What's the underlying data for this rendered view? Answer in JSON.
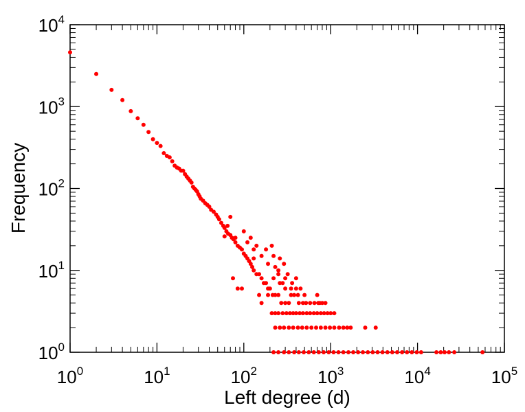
{
  "chart_data": {
    "type": "scatter",
    "title": "",
    "xlabel": "Left degree (d)",
    "ylabel": "Frequency",
    "xscale": "log",
    "yscale": "log",
    "xlim": [
      1,
      100000
    ],
    "ylim": [
      1,
      10000
    ],
    "grid": false,
    "legend": "none",
    "x_ticks": [
      {
        "base": "10",
        "exp": "0"
      },
      {
        "base": "10",
        "exp": "1"
      },
      {
        "base": "10",
        "exp": "2"
      },
      {
        "base": "10",
        "exp": "3"
      },
      {
        "base": "10",
        "exp": "4"
      },
      {
        "base": "10",
        "exp": "5"
      }
    ],
    "y_ticks": [
      {
        "base": "10",
        "exp": "0"
      },
      {
        "base": "10",
        "exp": "1"
      },
      {
        "base": "10",
        "exp": "2"
      },
      {
        "base": "10",
        "exp": "3"
      },
      {
        "base": "10",
        "exp": "4"
      }
    ],
    "marker_color": "#ff0000",
    "series": [
      {
        "points": [
          [
            1,
            4600
          ],
          [
            2,
            2500
          ],
          [
            3,
            1600
          ],
          [
            4,
            1200
          ],
          [
            5,
            880
          ],
          [
            6,
            720
          ],
          [
            7,
            600
          ],
          [
            8,
            490
          ],
          [
            9,
            400
          ],
          [
            10,
            360
          ],
          [
            11,
            330
          ],
          [
            12,
            270
          ],
          [
            13,
            250
          ],
          [
            14,
            240
          ],
          [
            15,
            215
          ],
          [
            16,
            190
          ],
          [
            17,
            180
          ],
          [
            18,
            175
          ],
          [
            19,
            165
          ],
          [
            20,
            165
          ],
          [
            21,
            150
          ],
          [
            22,
            140
          ],
          [
            23,
            132
          ],
          [
            24,
            125
          ],
          [
            25,
            118
          ],
          [
            26,
            105
          ],
          [
            27,
            100
          ],
          [
            28,
            96
          ],
          [
            29,
            92
          ],
          [
            30,
            85
          ],
          [
            31,
            80
          ],
          [
            32,
            75
          ],
          [
            34,
            71
          ],
          [
            36,
            66
          ],
          [
            38,
            63
          ],
          [
            40,
            60
          ],
          [
            42,
            55
          ],
          [
            45,
            52
          ],
          [
            48,
            48
          ],
          [
            50,
            45
          ],
          [
            52,
            42
          ],
          [
            55,
            38
          ],
          [
            58,
            35
          ],
          [
            60,
            33
          ],
          [
            63,
            30
          ],
          [
            66,
            28
          ],
          [
            70,
            27
          ],
          [
            73,
            25
          ],
          [
            76,
            24
          ],
          [
            80,
            22
          ],
          [
            85,
            20
          ],
          [
            90,
            19
          ],
          [
            95,
            18
          ],
          [
            100,
            16
          ],
          [
            105,
            15
          ],
          [
            110,
            14
          ],
          [
            115,
            13
          ],
          [
            120,
            12
          ],
          [
            125,
            11
          ],
          [
            130,
            10
          ],
          [
            140,
            9
          ],
          [
            150,
            9
          ],
          [
            160,
            8
          ],
          [
            170,
            7
          ],
          [
            180,
            7
          ],
          [
            190,
            6
          ],
          [
            200,
            6
          ],
          [
            215,
            5
          ],
          [
            230,
            5
          ],
          [
            250,
            5
          ],
          [
            270,
            4
          ],
          [
            300,
            4
          ],
          [
            330,
            4
          ],
          [
            75,
            8
          ],
          [
            95,
            6
          ],
          [
            130,
            18
          ],
          [
            160,
            15
          ],
          [
            210,
            20
          ],
          [
            80,
            25
          ],
          [
            110,
            22
          ],
          [
            190,
            12
          ],
          [
            230,
            11
          ],
          [
            250,
            9
          ],
          [
            280,
            7
          ],
          [
            350,
            6
          ],
          [
            400,
            6
          ],
          [
            420,
            5
          ],
          [
            450,
            6
          ],
          [
            500,
            5
          ],
          [
            85,
            6
          ],
          [
            150,
            5
          ],
          [
            190,
            5
          ],
          [
            250,
            10
          ],
          [
            300,
            8
          ],
          [
            160,
            4
          ],
          [
            60,
            26
          ],
          [
            65,
            35
          ],
          [
            70,
            45
          ],
          [
            100,
            30
          ],
          [
            120,
            25
          ],
          [
            140,
            20
          ],
          [
            180,
            18
          ],
          [
            220,
            15
          ],
          [
            260,
            14
          ],
          [
            290,
            12
          ],
          [
            320,
            9
          ],
          [
            360,
            7
          ],
          [
            400,
            8
          ],
          [
            130,
            14
          ],
          [
            220,
            8
          ],
          [
            260,
            7
          ],
          [
            300,
            6
          ],
          [
            350,
            5
          ],
          [
            380,
            5
          ],
          [
            430,
            4
          ],
          [
            480,
            4
          ],
          [
            520,
            4
          ],
          [
            580,
            4
          ],
          [
            650,
            4
          ],
          [
            720,
            4
          ],
          [
            800,
            4
          ],
          [
            870,
            4
          ],
          [
            700,
            5
          ],
          [
            750,
            4
          ],
          [
            210,
            3
          ],
          [
            230,
            3
          ],
          [
            250,
            3
          ],
          [
            280,
            3
          ],
          [
            310,
            3
          ],
          [
            340,
            3
          ],
          [
            370,
            3
          ],
          [
            400,
            3
          ],
          [
            440,
            3
          ],
          [
            480,
            3
          ],
          [
            530,
            3
          ],
          [
            580,
            3
          ],
          [
            640,
            3
          ],
          [
            700,
            3
          ],
          [
            770,
            3
          ],
          [
            840,
            3
          ],
          [
            920,
            3
          ],
          [
            1000,
            3
          ],
          [
            1100,
            3
          ],
          [
            230,
            2
          ],
          [
            260,
            2
          ],
          [
            290,
            2
          ],
          [
            330,
            2
          ],
          [
            370,
            2
          ],
          [
            420,
            2
          ],
          [
            470,
            2
          ],
          [
            530,
            2
          ],
          [
            600,
            2
          ],
          [
            680,
            2
          ],
          [
            770,
            2
          ],
          [
            870,
            2
          ],
          [
            980,
            2
          ],
          [
            1100,
            2
          ],
          [
            1250,
            2
          ],
          [
            1400,
            2
          ],
          [
            1550,
            2
          ],
          [
            1700,
            2
          ],
          [
            2500,
            2
          ],
          [
            3300,
            2
          ],
          [
            220,
            1
          ],
          [
            250,
            1
          ],
          [
            290,
            1
          ],
          [
            330,
            1
          ],
          [
            380,
            1
          ],
          [
            430,
            1
          ],
          [
            490,
            1
          ],
          [
            560,
            1
          ],
          [
            640,
            1
          ],
          [
            730,
            1
          ],
          [
            830,
            1
          ],
          [
            950,
            1
          ],
          [
            1080,
            1
          ],
          [
            1230,
            1
          ],
          [
            1400,
            1
          ],
          [
            1600,
            1
          ],
          [
            1820,
            1
          ],
          [
            2070,
            1
          ],
          [
            2350,
            1
          ],
          [
            2680,
            1
          ],
          [
            3050,
            1
          ],
          [
            3470,
            1
          ],
          [
            3950,
            1
          ],
          [
            4500,
            1
          ],
          [
            5120,
            1
          ],
          [
            5830,
            1
          ],
          [
            6640,
            1
          ],
          [
            7560,
            1
          ],
          [
            8600,
            1
          ],
          [
            9800,
            1
          ],
          [
            11000,
            1
          ],
          [
            16500,
            1
          ],
          [
            18500,
            1
          ],
          [
            20500,
            1
          ],
          [
            23000,
            1
          ],
          [
            26500,
            1
          ],
          [
            56000,
            1
          ]
        ]
      }
    ]
  }
}
